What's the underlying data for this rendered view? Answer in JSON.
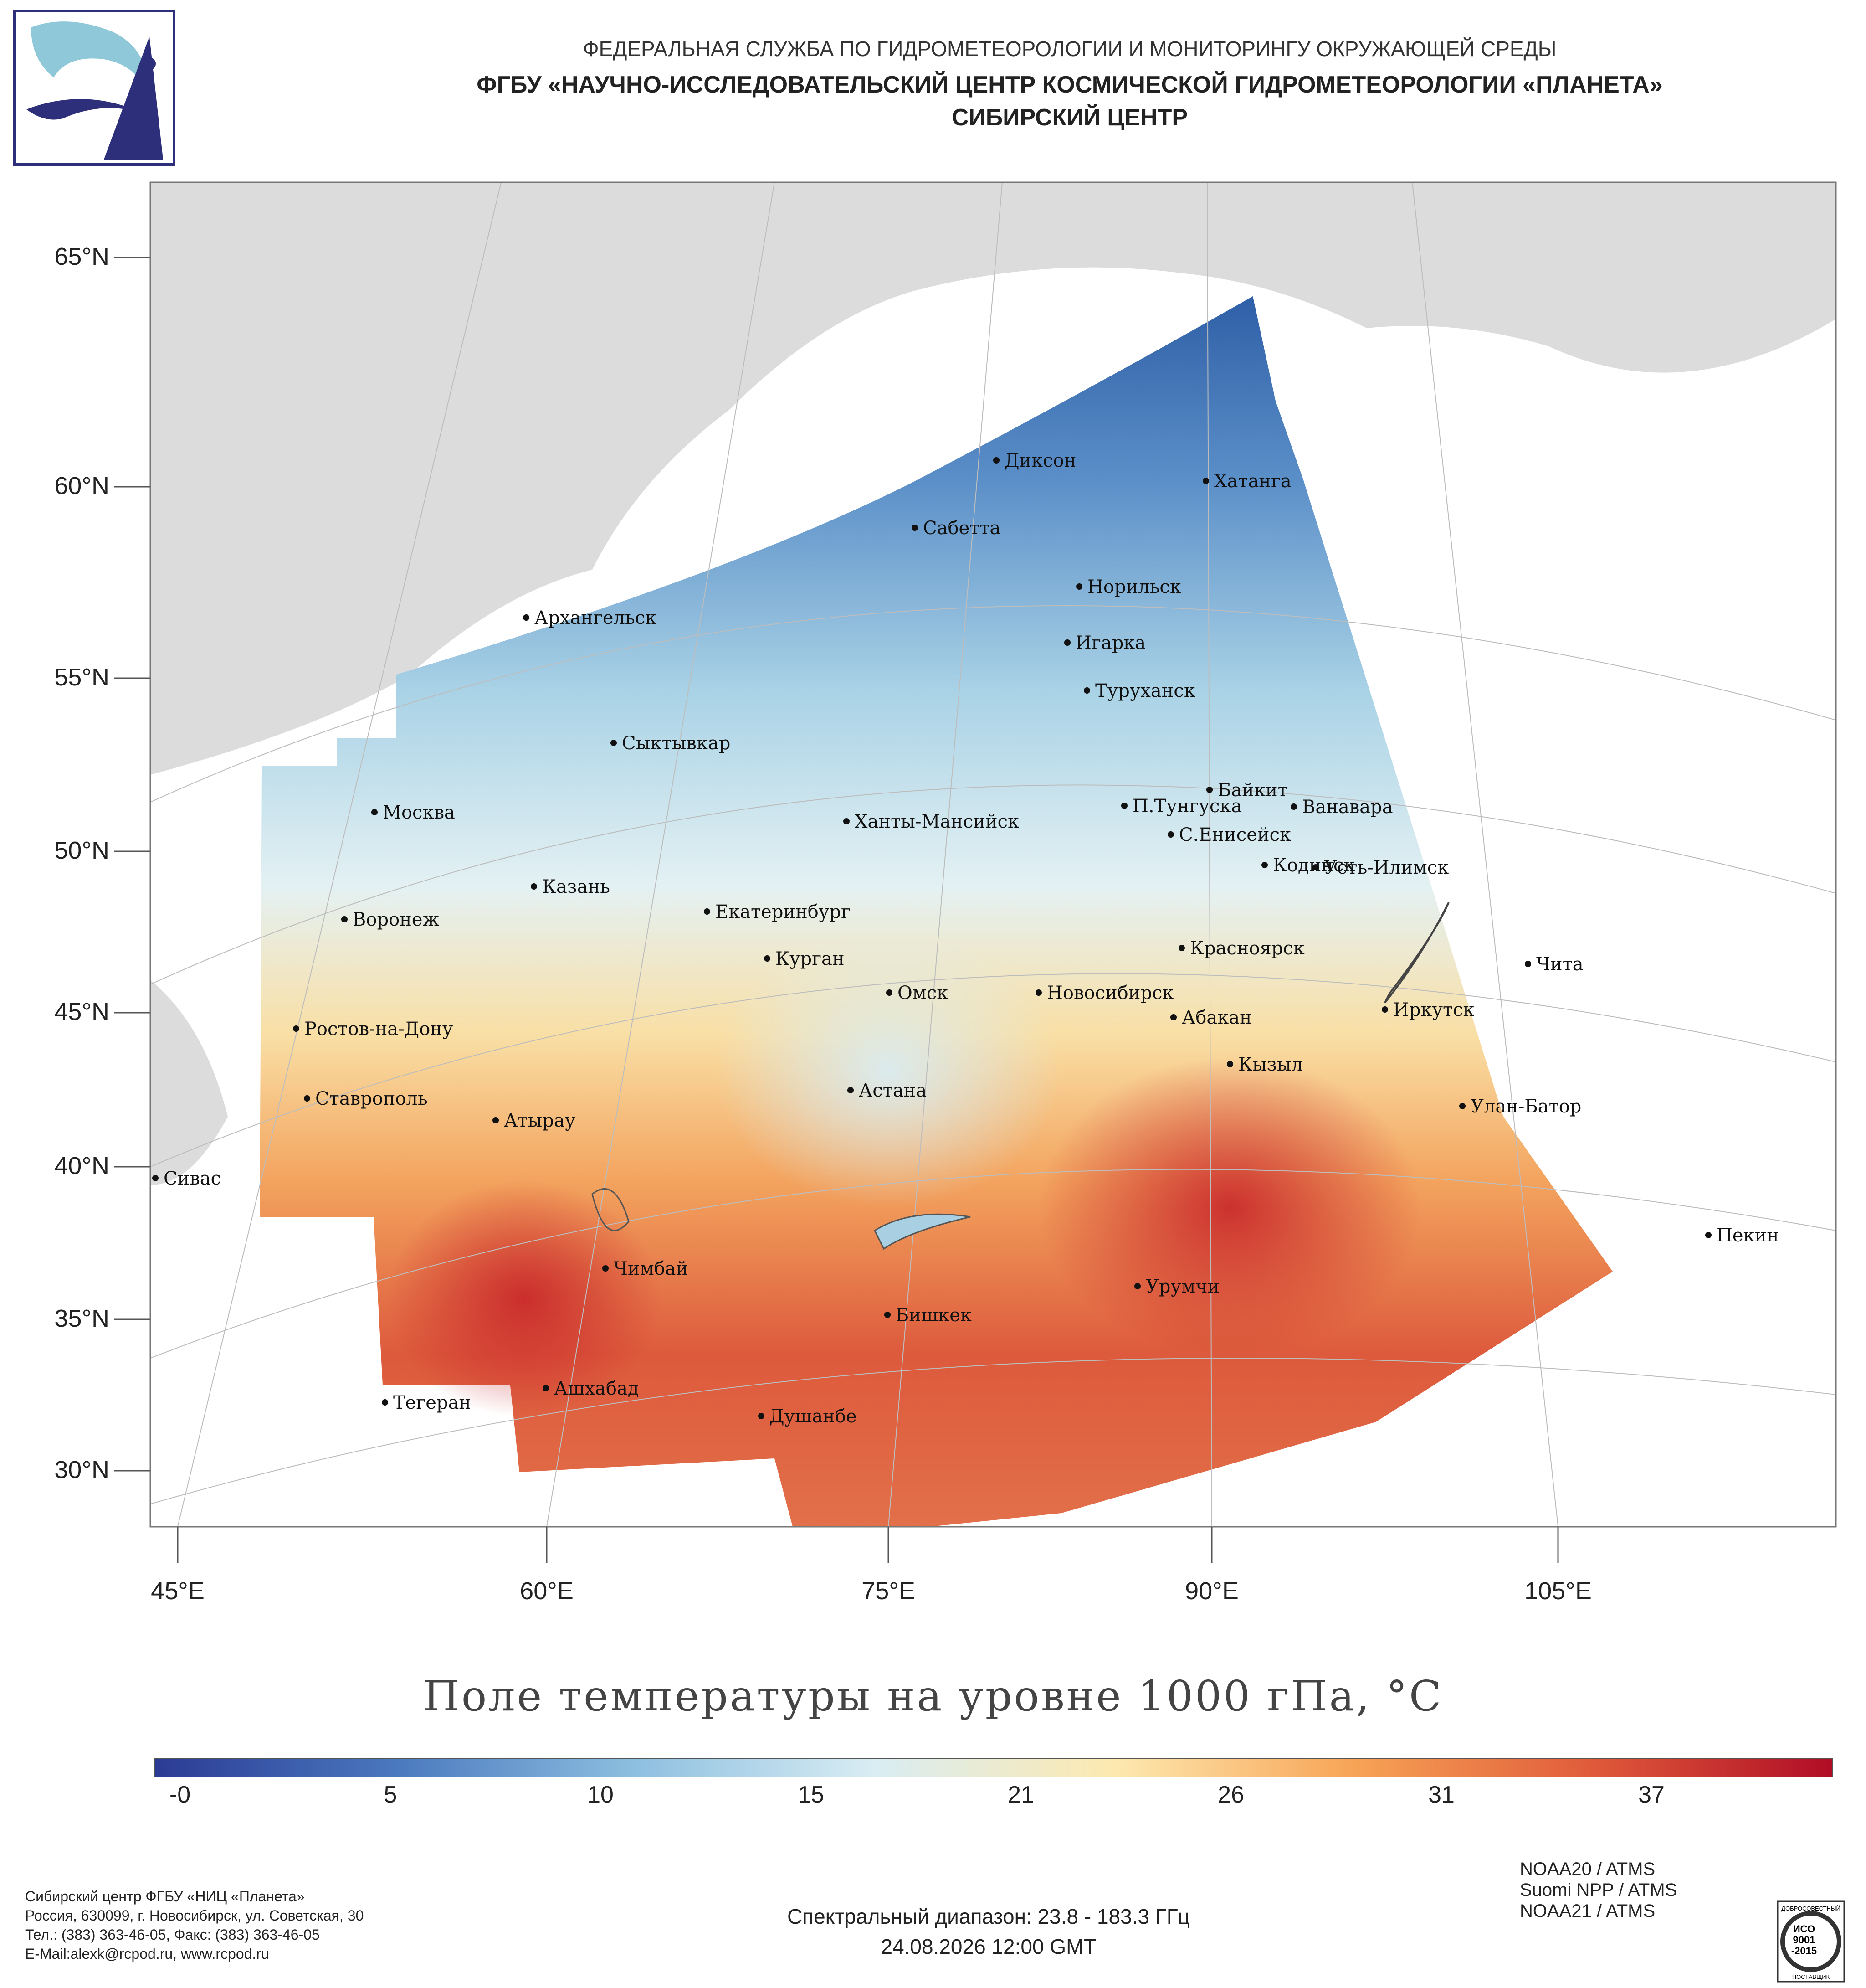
{
  "header": {
    "line1": "ФЕДЕРАЛЬНАЯ СЛУЖБА ПО ГИДРОМЕТЕОРОЛОГИИ И МОНИТОРИНГУ ОКРУЖАЮЩЕЙ СРЕДЫ",
    "line2": "ФГБУ «НАУЧНО-ИССЛЕДОВАТЕЛЬСКИЙ ЦЕНТР КОСМИЧЕСКОЙ ГИДРОМЕТЕОРОЛОГИИ «ПЛАНЕТА»",
    "line3": "СИБИРСКИЙ ЦЕНТР"
  },
  "axes": {
    "latitude_labels": [
      "65°N",
      "60°N",
      "55°N",
      "50°N",
      "45°N",
      "40°N",
      "35°N",
      "30°N"
    ],
    "longitude_labels": [
      "45°E",
      "60°E",
      "75°E",
      "90°E",
      "105°E"
    ]
  },
  "cities": [
    {
      "name": "Диксон"
    },
    {
      "name": "Хатанга"
    },
    {
      "name": "Сабетта"
    },
    {
      "name": "Норильск"
    },
    {
      "name": "Архангельск"
    },
    {
      "name": "Игарка"
    },
    {
      "name": "Туруханск"
    },
    {
      "name": "Сыктывкар"
    },
    {
      "name": "Байкит"
    },
    {
      "name": "Москва"
    },
    {
      "name": "П.Тунгуска"
    },
    {
      "name": "Ванавара"
    },
    {
      "name": "Ханты-Мансийск"
    },
    {
      "name": "С.Енисейск"
    },
    {
      "name": "Кодинск"
    },
    {
      "name": "Усть-Илимск"
    },
    {
      "name": "Казань"
    },
    {
      "name": "Екатеринбург"
    },
    {
      "name": "Воронеж"
    },
    {
      "name": "Красноярск"
    },
    {
      "name": "Курган"
    },
    {
      "name": "Чита"
    },
    {
      "name": "Омск"
    },
    {
      "name": "Новосибирск"
    },
    {
      "name": "Иркутск"
    },
    {
      "name": "Абакан"
    },
    {
      "name": "Ростов-на-Дону"
    },
    {
      "name": "Кызыл"
    },
    {
      "name": "Астана"
    },
    {
      "name": "Ставрополь"
    },
    {
      "name": "Улан-Батор"
    },
    {
      "name": "Атырау"
    },
    {
      "name": "Сивас"
    },
    {
      "name": "Пекин"
    },
    {
      "name": "Чимбай"
    },
    {
      "name": "Урумчи"
    },
    {
      "name": "Бишкек"
    },
    {
      "name": "Ашхабад"
    },
    {
      "name": "Тегеран"
    },
    {
      "name": "Душанбе"
    }
  ],
  "map_title": "Поле температуры на уровне 1000 гПа, °С",
  "colorbar": {
    "ticks": [
      "-0",
      "5",
      "10",
      "15",
      "21",
      "26",
      "31",
      "37"
    ],
    "colors": [
      "#2b3b94",
      "#4a78be",
      "#8dbfe0",
      "#d9edf3",
      "#fde9b0",
      "#f7a456",
      "#e05a3a",
      "#b00d26"
    ]
  },
  "map_colors": {
    "land": "#dcdcdc",
    "ocean": "#ffffff",
    "cold": "#3a6db3",
    "mild": "#d6ebf2",
    "warm": "#f4c27a",
    "hot": "#cf3b2d"
  },
  "footer": {
    "org_lines": [
      "Сибирский центр ФГБУ «НИЦ «Планета»",
      "Россия, 630099, г. Новосибирск, ул. Советская, 30",
      "Тел.: (383) 363-46-05, Факс: (383) 363-46-05",
      "E-Mail:alexk@rcpod.ru, www.rcpod.ru"
    ],
    "spectral": "Спектральный диапазон: 23.8 - 183.3 ГГц",
    "datetime": "24.08.2026 12:00 GMT",
    "satellites": [
      "NOAA20 / ATMS",
      "Suomi NPP / ATMS",
      "NOAA21 / ATMS"
    ],
    "iso_text": [
      "ДОБРОСОВЕСТНЫЙ",
      "ИСО",
      "9001",
      "-2015",
      "ПОСТАВЩИК"
    ]
  }
}
